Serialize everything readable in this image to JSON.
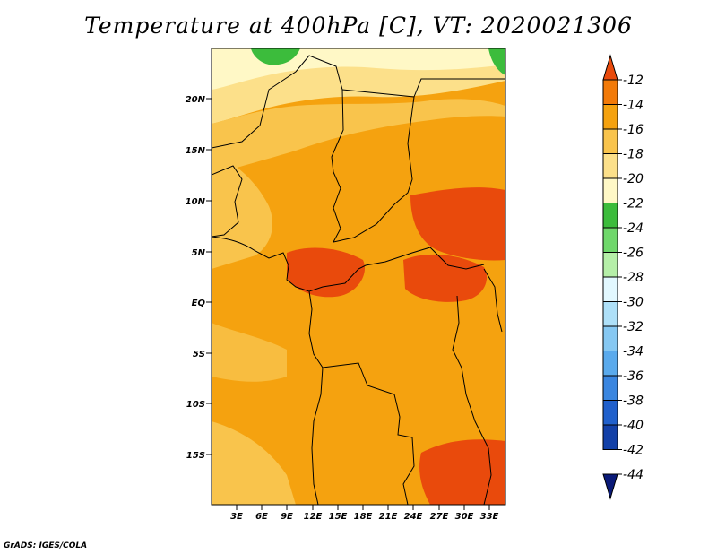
{
  "title": "Temperature at 400hPa [C], VT: 2020021306",
  "credit": "GrADS: IGES/COLA",
  "lat_labels": [
    "20N",
    "15N",
    "10N",
    "5N",
    "EQ",
    "5S",
    "10S",
    "15S"
  ],
  "lon_labels": [
    "3E",
    "6E",
    "9E",
    "12E",
    "15E",
    "18E",
    "21E",
    "24E",
    "27E",
    "30E",
    "33E"
  ],
  "colorbar": {
    "labels": [
      "-12",
      "-14",
      "-16",
      "-18",
      "-20",
      "-22",
      "-24",
      "-26",
      "-28",
      "-30",
      "-32",
      "-34",
      "-36",
      "-38",
      "-40",
      "-42",
      "-44"
    ],
    "colors": [
      "#e94a0c",
      "#f27a08",
      "#f5a20f",
      "#f9c44c",
      "#fce08a",
      "#fff8c6",
      "#3cbc3c",
      "#6fd86b",
      "#b5efa8",
      "#e2f8ff",
      "#aee0f8",
      "#86c8f2",
      "#5aaaec",
      "#3a86e0",
      "#2060cc",
      "#1240a8",
      "#0a1a78"
    ]
  }
}
